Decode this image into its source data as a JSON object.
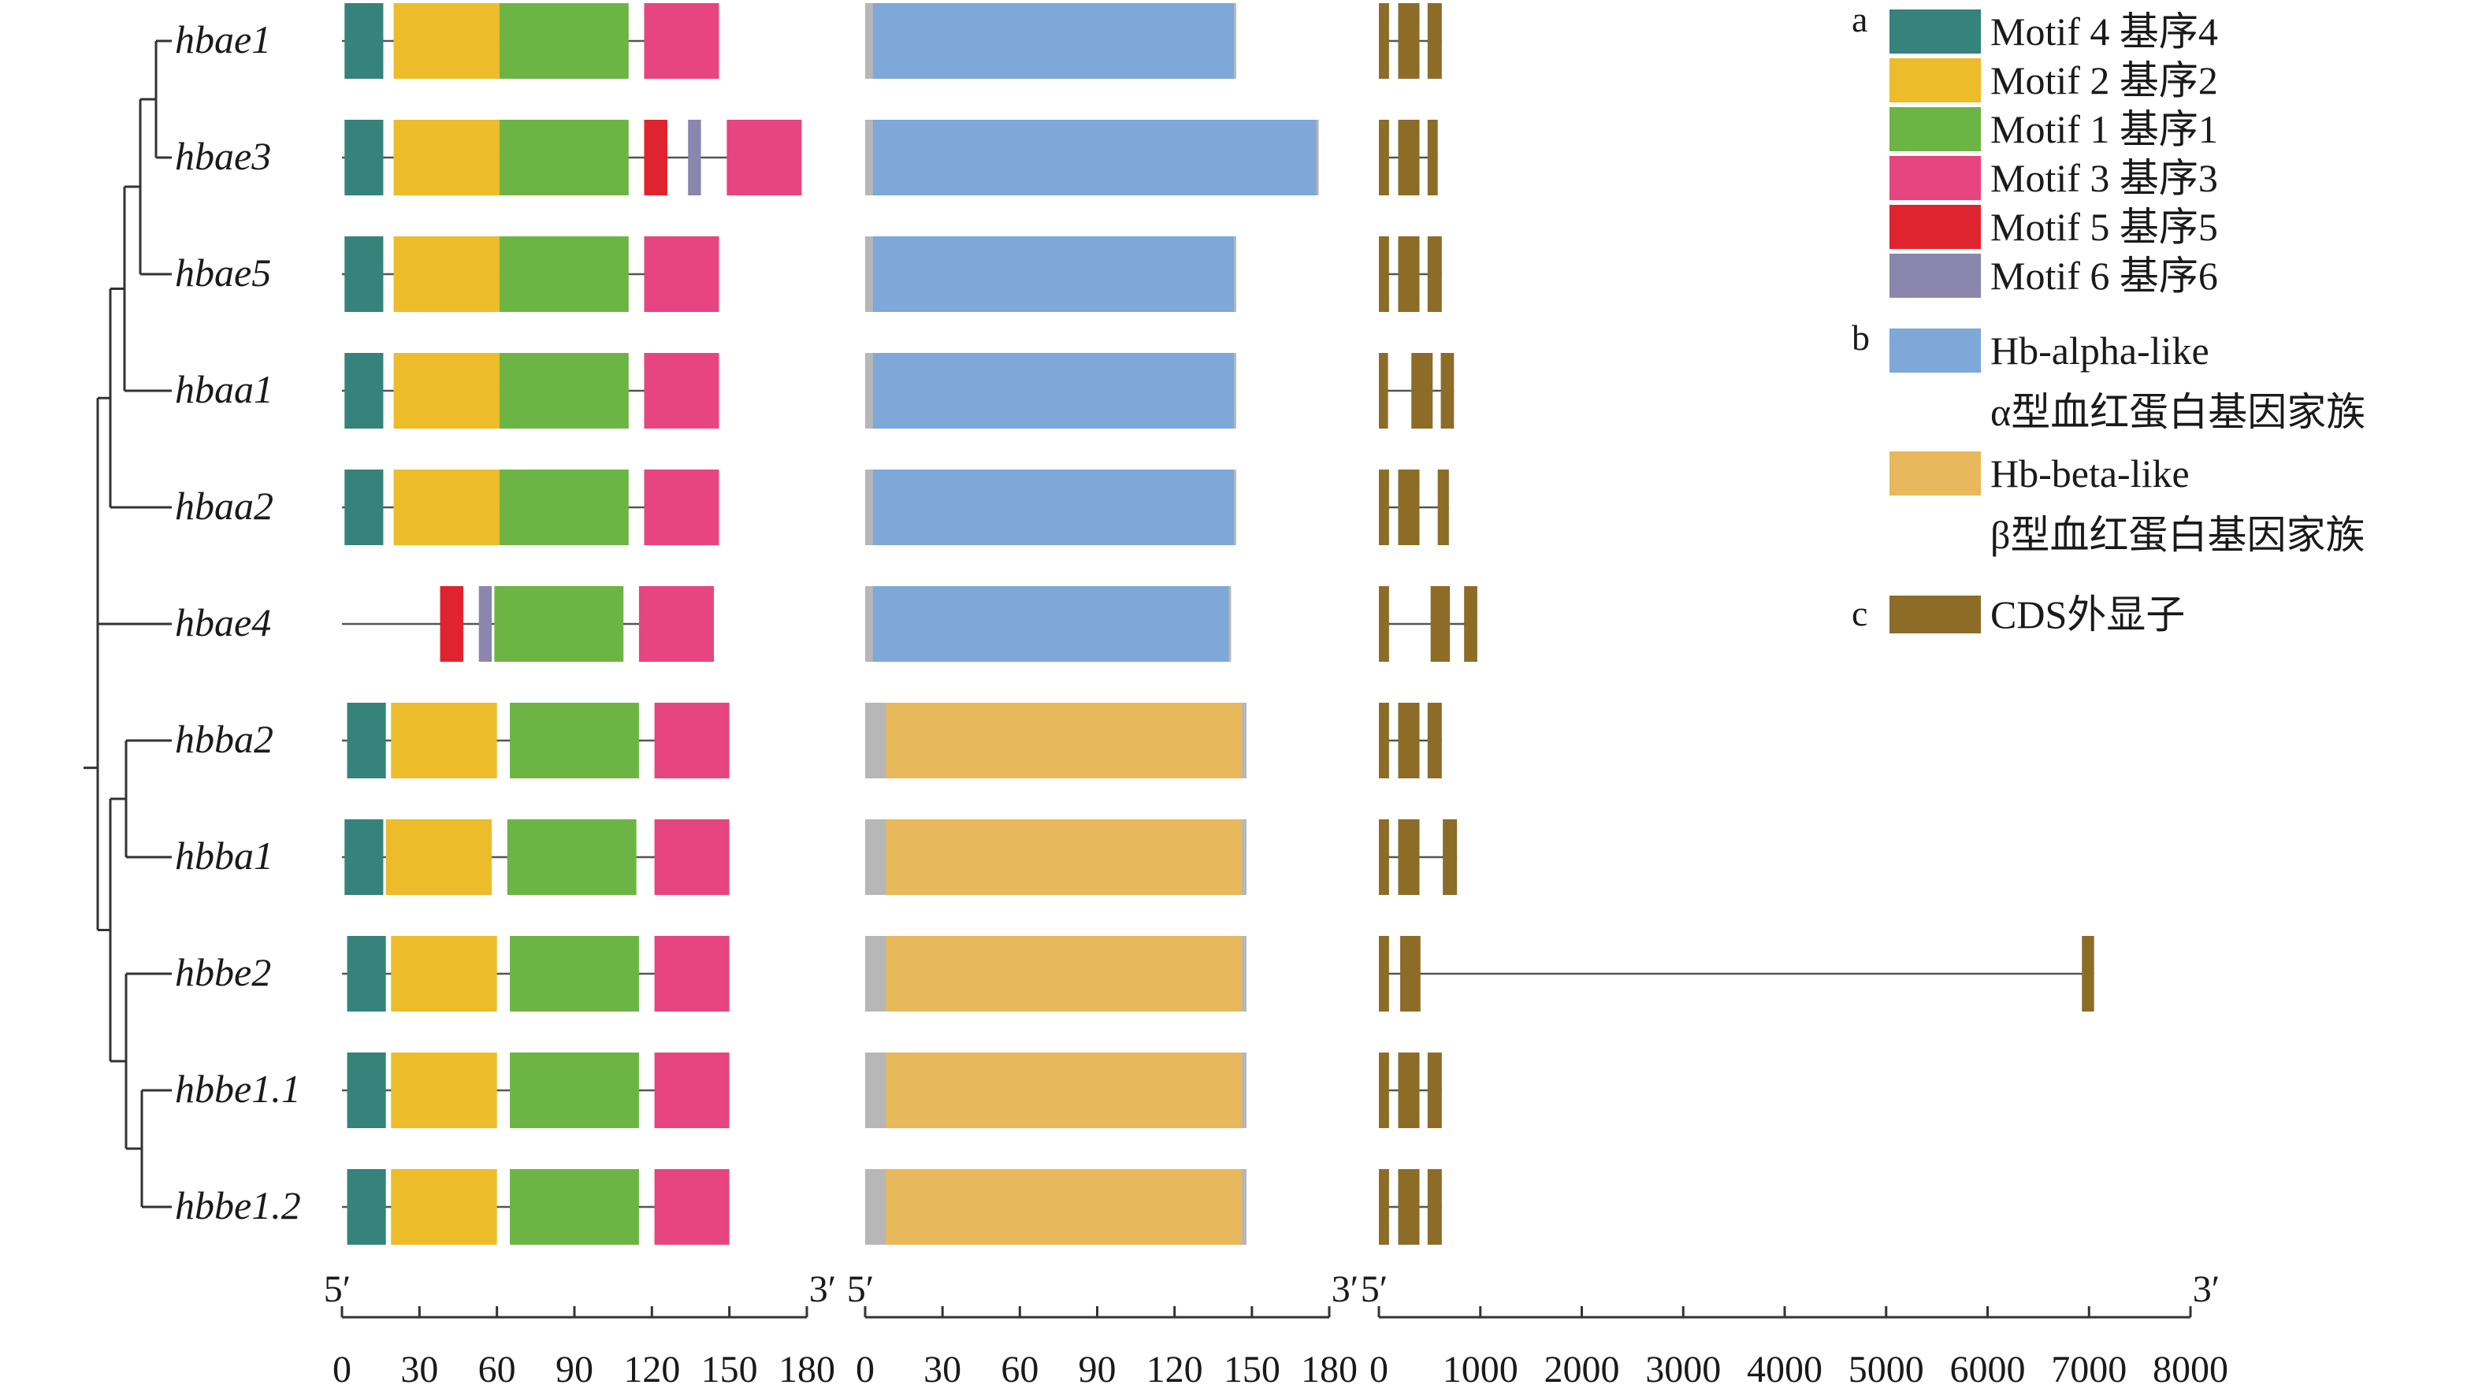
{
  "colors": {
    "motif4": "#35837a",
    "motif2": "#ecbc2a",
    "motif1": "#6cb544",
    "motif3": "#e6457f",
    "motif5": "#e0242f",
    "motif6": "#8b86ad",
    "alpha_domain": "#7da8d8",
    "beta_domain": "#e8b85c",
    "domain_gap": "#b7b7b7",
    "exon": "#8d6c28",
    "line": "#555555"
  },
  "genes": [
    {
      "name": "hbae1",
      "protein_length": 143,
      "motifs": [
        {
          "motif": "motif4",
          "start": 1,
          "end": 16
        },
        {
          "motif": "motif2",
          "start": 20,
          "end": 61
        },
        {
          "motif": "motif1",
          "start": 61,
          "end": 111
        },
        {
          "motif": "motif3",
          "start": 117,
          "end": 146
        }
      ],
      "domain": {
        "type": "alpha_domain",
        "start": 3,
        "end": 143
      },
      "exons": [
        {
          "start": 0,
          "end": 100
        },
        {
          "start": 190,
          "end": 400
        },
        {
          "start": 480,
          "end": 620
        }
      ]
    },
    {
      "name": "hbae3",
      "protein_length": 175,
      "motifs": [
        {
          "motif": "motif4",
          "start": 1,
          "end": 16
        },
        {
          "motif": "motif2",
          "start": 20,
          "end": 61
        },
        {
          "motif": "motif1",
          "start": 61,
          "end": 111
        },
        {
          "motif": "motif5",
          "start": 117,
          "end": 126
        },
        {
          "motif": "motif6",
          "start": 134,
          "end": 139
        },
        {
          "motif": "motif3",
          "start": 149,
          "end": 178
        }
      ],
      "domain": {
        "type": "alpha_domain",
        "start": 3,
        "end": 175
      },
      "exons": [
        {
          "start": 0,
          "end": 100
        },
        {
          "start": 190,
          "end": 400
        },
        {
          "start": 480,
          "end": 580
        }
      ]
    },
    {
      "name": "hbae5",
      "protein_length": 143,
      "motifs": [
        {
          "motif": "motif4",
          "start": 1,
          "end": 16
        },
        {
          "motif": "motif2",
          "start": 20,
          "end": 61
        },
        {
          "motif": "motif1",
          "start": 61,
          "end": 111
        },
        {
          "motif": "motif3",
          "start": 117,
          "end": 146
        }
      ],
      "domain": {
        "type": "alpha_domain",
        "start": 3,
        "end": 143
      },
      "exons": [
        {
          "start": 0,
          "end": 100
        },
        {
          "start": 190,
          "end": 400
        },
        {
          "start": 480,
          "end": 620
        }
      ]
    },
    {
      "name": "hbaa1",
      "protein_length": 143,
      "motifs": [
        {
          "motif": "motif4",
          "start": 1,
          "end": 16
        },
        {
          "motif": "motif2",
          "start": 20,
          "end": 61
        },
        {
          "motif": "motif1",
          "start": 61,
          "end": 111
        },
        {
          "motif": "motif3",
          "start": 117,
          "end": 146
        }
      ],
      "domain": {
        "type": "alpha_domain",
        "start": 3,
        "end": 143
      },
      "exons": [
        {
          "start": 0,
          "end": 90
        },
        {
          "start": 320,
          "end": 530
        },
        {
          "start": 610,
          "end": 740
        }
      ]
    },
    {
      "name": "hbaa2",
      "protein_length": 143,
      "motifs": [
        {
          "motif": "motif4",
          "start": 1,
          "end": 16
        },
        {
          "motif": "motif2",
          "start": 20,
          "end": 61
        },
        {
          "motif": "motif1",
          "start": 61,
          "end": 111
        },
        {
          "motif": "motif3",
          "start": 117,
          "end": 146
        }
      ],
      "domain": {
        "type": "alpha_domain",
        "start": 3,
        "end": 143
      },
      "exons": [
        {
          "start": 0,
          "end": 100
        },
        {
          "start": 190,
          "end": 400
        },
        {
          "start": 580,
          "end": 690
        }
      ]
    },
    {
      "name": "hbae4",
      "protein_length": 141,
      "motifs": [
        {
          "motif": "motif5",
          "start": 38,
          "end": 47
        },
        {
          "motif": "motif6",
          "start": 53,
          "end": 58
        },
        {
          "motif": "motif1",
          "start": 59,
          "end": 109
        },
        {
          "motif": "motif3",
          "start": 115,
          "end": 144
        }
      ],
      "domain": {
        "type": "alpha_domain",
        "start": 3,
        "end": 141
      },
      "exons": [
        {
          "start": 0,
          "end": 100
        },
        {
          "start": 510,
          "end": 700
        },
        {
          "start": 840,
          "end": 970
        }
      ]
    },
    {
      "name": "hbba2",
      "protein_length": 147,
      "motifs": [
        {
          "motif": "motif4",
          "start": 2,
          "end": 17
        },
        {
          "motif": "motif2",
          "start": 19,
          "end": 60
        },
        {
          "motif": "motif1",
          "start": 65,
          "end": 115
        },
        {
          "motif": "motif3",
          "start": 121,
          "end": 150
        }
      ],
      "domain": {
        "type": "beta_domain",
        "start": 8,
        "end": 146
      },
      "exons": [
        {
          "start": 0,
          "end": 100
        },
        {
          "start": 190,
          "end": 400
        },
        {
          "start": 480,
          "end": 620
        }
      ]
    },
    {
      "name": "hbba1",
      "protein_length": 147,
      "motifs": [
        {
          "motif": "motif4",
          "start": 1,
          "end": 16
        },
        {
          "motif": "motif2",
          "start": 17,
          "end": 58
        },
        {
          "motif": "motif1",
          "start": 64,
          "end": 114
        },
        {
          "motif": "motif3",
          "start": 121,
          "end": 150
        }
      ],
      "domain": {
        "type": "beta_domain",
        "start": 8,
        "end": 146
      },
      "exons": [
        {
          "start": 0,
          "end": 100
        },
        {
          "start": 190,
          "end": 400
        },
        {
          "start": 630,
          "end": 770
        }
      ]
    },
    {
      "name": "hbbe2",
      "protein_length": 147,
      "motifs": [
        {
          "motif": "motif4",
          "start": 2,
          "end": 17
        },
        {
          "motif": "motif2",
          "start": 19,
          "end": 60
        },
        {
          "motif": "motif1",
          "start": 65,
          "end": 115
        },
        {
          "motif": "motif3",
          "start": 121,
          "end": 150
        }
      ],
      "domain": {
        "type": "beta_domain",
        "start": 8,
        "end": 146
      },
      "exons": [
        {
          "start": 0,
          "end": 100
        },
        {
          "start": 210,
          "end": 410
        },
        {
          "start": 6930,
          "end": 7050
        }
      ]
    },
    {
      "name": "hbbe1.1",
      "protein_length": 147,
      "motifs": [
        {
          "motif": "motif4",
          "start": 2,
          "end": 17
        },
        {
          "motif": "motif2",
          "start": 19,
          "end": 60
        },
        {
          "motif": "motif1",
          "start": 65,
          "end": 115
        },
        {
          "motif": "motif3",
          "start": 121,
          "end": 150
        }
      ],
      "domain": {
        "type": "beta_domain",
        "start": 8,
        "end": 146
      },
      "exons": [
        {
          "start": 0,
          "end": 100
        },
        {
          "start": 190,
          "end": 400
        },
        {
          "start": 480,
          "end": 620
        }
      ]
    },
    {
      "name": "hbbe1.2",
      "protein_length": 147,
      "motifs": [
        {
          "motif": "motif4",
          "start": 2,
          "end": 17
        },
        {
          "motif": "motif2",
          "start": 19,
          "end": 60
        },
        {
          "motif": "motif1",
          "start": 65,
          "end": 115
        },
        {
          "motif": "motif3",
          "start": 121,
          "end": 150
        }
      ],
      "domain": {
        "type": "beta_domain",
        "start": 8,
        "end": 146
      },
      "exons": [
        {
          "start": 0,
          "end": 100
        },
        {
          "start": 190,
          "end": 400
        },
        {
          "start": 480,
          "end": 620
        }
      ]
    }
  ],
  "axes": {
    "motif": {
      "min": 0,
      "max": 180,
      "ticks": [
        "0",
        "30",
        "60",
        "90",
        "120",
        "150",
        "180"
      ],
      "start_label": "5′",
      "end_label": "3′"
    },
    "domain": {
      "min": 0,
      "max": 180,
      "ticks": [
        "0",
        "30",
        "60",
        "90",
        "120",
        "150",
        "180"
      ],
      "start_label": "5′",
      "end_label": "3′"
    },
    "exon": {
      "min": 0,
      "max": 8000,
      "ticks": [
        "0",
        "1000",
        "2000",
        "3000",
        "4000",
        "5000",
        "6000",
        "7000",
        "8000"
      ],
      "start_label": "5′",
      "end_label": "3′"
    }
  },
  "legend": {
    "a": {
      "letter": "a",
      "items": [
        {
          "color_key": "motif4",
          "label": "Motif 4 基序4"
        },
        {
          "color_key": "motif2",
          "label": "Motif 2 基序2"
        },
        {
          "color_key": "motif1",
          "label": "Motif 1 基序1"
        },
        {
          "color_key": "motif3",
          "label": "Motif 3 基序3"
        },
        {
          "color_key": "motif5",
          "label": "Motif 5 基序5"
        },
        {
          "color_key": "motif6",
          "label": "Motif 6 基序6"
        }
      ]
    },
    "b": {
      "letter": "b",
      "items": [
        {
          "color_key": "alpha_domain",
          "label": "Hb-alpha-like",
          "sublabel": "α型血红蛋白基因家族"
        },
        {
          "color_key": "beta_domain",
          "label": "Hb-beta-like",
          "sublabel": "β型血红蛋白基因家族"
        }
      ]
    },
    "c": {
      "letter": "c",
      "items": [
        {
          "color_key": "exon",
          "label": "CDS外显子"
        }
      ]
    }
  }
}
